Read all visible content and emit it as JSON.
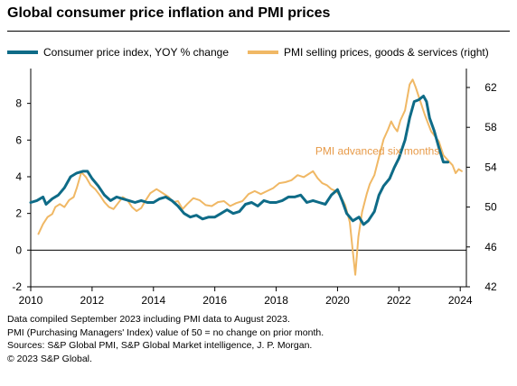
{
  "header": {
    "title": "Global consumer price inflation and PMI prices"
  },
  "colors": {
    "cpi": "#0e6b87",
    "pmi": "#f0b865",
    "annotation": "#e79a48",
    "zero_line": "#000000"
  },
  "footer": {
    "notes": [
      "Data compiled September 2023 including PMI data to August 2023.",
      "PMI (Purchasing Managers' Index) value of 50 = no change on prior month.",
      "Sources: S&P Global PMI, S&P Global Market intelligence, J. P. Morgan.",
      "© 2023 S&P Global."
    ]
  },
  "chart_data": {
    "type": "line",
    "title": "Global consumer price inflation and PMI prices",
    "x_ticks": [
      "2010",
      "2012",
      "2014",
      "2016",
      "2018",
      "2020",
      "2022",
      "2024"
    ],
    "xlim": [
      2010,
      2024.2
    ],
    "y_left": {
      "ticks": [
        "-2",
        "0",
        "2",
        "4",
        "6",
        "8"
      ],
      "lim": [
        -2,
        9.9
      ]
    },
    "y_right": {
      "ticks": [
        "42",
        "46",
        "50",
        "54",
        "58",
        "62"
      ],
      "lim": [
        42,
        63.9
      ]
    },
    "annotation": {
      "text": "PMI advanced six months",
      "x": 2021.3,
      "y_left": 5.2
    },
    "legend_position": "top",
    "grid": false,
    "series": [
      {
        "name": "Consumer price index, YOY % change",
        "axis": "left",
        "color": "#0e6b87",
        "points": [
          [
            2010.0,
            2.6
          ],
          [
            2010.2,
            2.7
          ],
          [
            2010.4,
            2.9
          ],
          [
            2010.5,
            2.5
          ],
          [
            2010.7,
            2.8
          ],
          [
            2010.9,
            3.0
          ],
          [
            2011.1,
            3.4
          ],
          [
            2011.3,
            4.0
          ],
          [
            2011.5,
            4.2
          ],
          [
            2011.7,
            4.3
          ],
          [
            2011.85,
            4.3
          ],
          [
            2012.0,
            3.9
          ],
          [
            2012.2,
            3.5
          ],
          [
            2012.4,
            3.0
          ],
          [
            2012.6,
            2.7
          ],
          [
            2012.8,
            2.9
          ],
          [
            2013.0,
            2.8
          ],
          [
            2013.2,
            2.7
          ],
          [
            2013.4,
            2.6
          ],
          [
            2013.6,
            2.7
          ],
          [
            2013.8,
            2.6
          ],
          [
            2014.0,
            2.6
          ],
          [
            2014.2,
            2.8
          ],
          [
            2014.4,
            2.9
          ],
          [
            2014.6,
            2.7
          ],
          [
            2014.8,
            2.4
          ],
          [
            2015.0,
            2.0
          ],
          [
            2015.2,
            1.8
          ],
          [
            2015.4,
            1.9
          ],
          [
            2015.6,
            1.7
          ],
          [
            2015.8,
            1.8
          ],
          [
            2016.0,
            1.8
          ],
          [
            2016.2,
            2.0
          ],
          [
            2016.4,
            2.2
          ],
          [
            2016.6,
            2.0
          ],
          [
            2016.8,
            2.1
          ],
          [
            2017.0,
            2.5
          ],
          [
            2017.2,
            2.6
          ],
          [
            2017.4,
            2.4
          ],
          [
            2017.6,
            2.7
          ],
          [
            2017.8,
            2.6
          ],
          [
            2018.0,
            2.6
          ],
          [
            2018.2,
            2.7
          ],
          [
            2018.4,
            2.9
          ],
          [
            2018.6,
            2.9
          ],
          [
            2018.8,
            3.0
          ],
          [
            2019.0,
            2.6
          ],
          [
            2019.2,
            2.7
          ],
          [
            2019.4,
            2.6
          ],
          [
            2019.6,
            2.5
          ],
          [
            2019.8,
            3.0
          ],
          [
            2020.0,
            3.3
          ],
          [
            2020.15,
            2.7
          ],
          [
            2020.3,
            2.0
          ],
          [
            2020.5,
            1.6
          ],
          [
            2020.7,
            1.8
          ],
          [
            2020.85,
            1.4
          ],
          [
            2021.0,
            1.6
          ],
          [
            2021.2,
            2.1
          ],
          [
            2021.35,
            3.0
          ],
          [
            2021.5,
            3.5
          ],
          [
            2021.7,
            3.9
          ],
          [
            2021.85,
            4.5
          ],
          [
            2022.0,
            5.0
          ],
          [
            2022.2,
            6.0
          ],
          [
            2022.35,
            7.2
          ],
          [
            2022.5,
            8.1
          ],
          [
            2022.65,
            8.2
          ],
          [
            2022.8,
            8.4
          ],
          [
            2022.9,
            8.1
          ],
          [
            2023.0,
            7.2
          ],
          [
            2023.15,
            6.5
          ],
          [
            2023.3,
            5.6
          ],
          [
            2023.45,
            4.8
          ],
          [
            2023.6,
            4.8
          ]
        ]
      },
      {
        "name": "PMI selling prices, goods & services (right)",
        "axis": "right",
        "color": "#f0b865",
        "points": [
          [
            2010.25,
            47.3
          ],
          [
            2010.4,
            48.3
          ],
          [
            2010.55,
            49.0
          ],
          [
            2010.7,
            49.3
          ],
          [
            2010.8,
            50.0
          ],
          [
            2010.95,
            50.3
          ],
          [
            2011.1,
            50.0
          ],
          [
            2011.25,
            50.7
          ],
          [
            2011.4,
            51.0
          ],
          [
            2011.5,
            51.9
          ],
          [
            2011.65,
            53.5
          ],
          [
            2011.8,
            53.0
          ],
          [
            2011.95,
            52.2
          ],
          [
            2012.1,
            51.8
          ],
          [
            2012.25,
            51.2
          ],
          [
            2012.4,
            50.5
          ],
          [
            2012.55,
            50.0
          ],
          [
            2012.7,
            49.8
          ],
          [
            2012.85,
            50.4
          ],
          [
            2013.0,
            51.0
          ],
          [
            2013.15,
            50.7
          ],
          [
            2013.3,
            50.0
          ],
          [
            2013.45,
            49.6
          ],
          [
            2013.6,
            49.9
          ],
          [
            2013.75,
            50.7
          ],
          [
            2013.9,
            51.4
          ],
          [
            2014.1,
            51.8
          ],
          [
            2014.3,
            51.4
          ],
          [
            2014.5,
            51.0
          ],
          [
            2014.65,
            50.5
          ],
          [
            2014.8,
            50.6
          ],
          [
            2014.95,
            49.8
          ],
          [
            2015.1,
            50.3
          ],
          [
            2015.3,
            50.9
          ],
          [
            2015.5,
            50.7
          ],
          [
            2015.7,
            50.2
          ],
          [
            2015.9,
            50.1
          ],
          [
            2016.1,
            50.5
          ],
          [
            2016.3,
            50.6
          ],
          [
            2016.5,
            50.1
          ],
          [
            2016.7,
            50.4
          ],
          [
            2016.9,
            50.6
          ],
          [
            2017.1,
            51.3
          ],
          [
            2017.3,
            51.6
          ],
          [
            2017.5,
            51.3
          ],
          [
            2017.7,
            51.6
          ],
          [
            2017.9,
            51.9
          ],
          [
            2018.1,
            52.4
          ],
          [
            2018.3,
            52.5
          ],
          [
            2018.5,
            52.7
          ],
          [
            2018.7,
            53.2
          ],
          [
            2018.9,
            53.0
          ],
          [
            2019.05,
            53.3
          ],
          [
            2019.2,
            53.6
          ],
          [
            2019.35,
            52.9
          ],
          [
            2019.5,
            52.4
          ],
          [
            2019.65,
            52.2
          ],
          [
            2019.8,
            51.8
          ],
          [
            2019.95,
            51.6
          ],
          [
            2020.1,
            51.1
          ],
          [
            2020.25,
            50.2
          ],
          [
            2020.4,
            48.5
          ],
          [
            2020.5,
            45.5
          ],
          [
            2020.58,
            43.2
          ],
          [
            2020.68,
            47.0
          ],
          [
            2020.8,
            49.5
          ],
          [
            2020.95,
            51.3
          ],
          [
            2021.05,
            52.3
          ],
          [
            2021.2,
            53.2
          ],
          [
            2021.35,
            55.0
          ],
          [
            2021.5,
            56.8
          ],
          [
            2021.65,
            57.8
          ],
          [
            2021.75,
            58.6
          ],
          [
            2021.85,
            58.0
          ],
          [
            2021.95,
            57.6
          ],
          [
            2022.05,
            58.7
          ],
          [
            2022.2,
            59.7
          ],
          [
            2022.35,
            62.3
          ],
          [
            2022.45,
            62.8
          ],
          [
            2022.55,
            62.0
          ],
          [
            2022.7,
            60.6
          ],
          [
            2022.85,
            59.2
          ],
          [
            2022.95,
            58.4
          ],
          [
            2023.05,
            57.6
          ],
          [
            2023.15,
            57.2
          ],
          [
            2023.3,
            56.6
          ],
          [
            2023.45,
            55.2
          ],
          [
            2023.6,
            54.7
          ],
          [
            2023.75,
            54.2
          ],
          [
            2023.85,
            53.4
          ],
          [
            2023.95,
            53.8
          ],
          [
            2024.05,
            53.6
          ]
        ]
      }
    ]
  }
}
